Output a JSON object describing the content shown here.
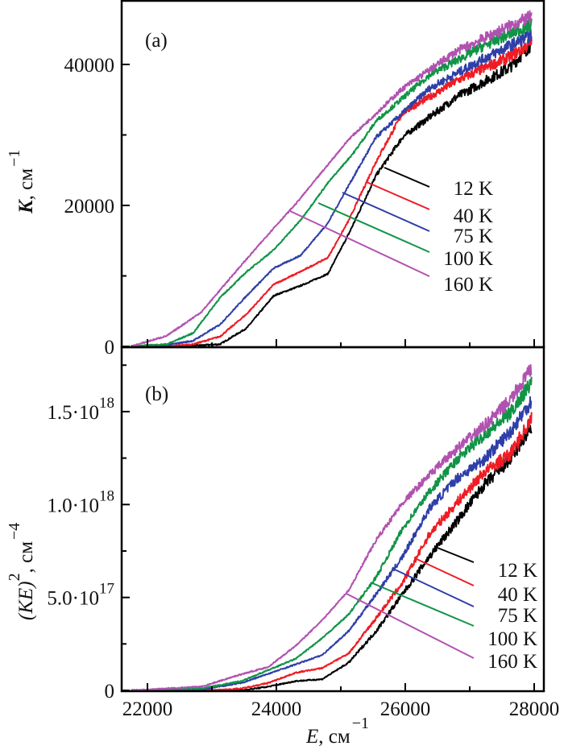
{
  "chart_data": [
    {
      "type": "line",
      "panel_label": "(a)",
      "ylabel": {
        "symbol": "K",
        "rest": ", cм",
        "exp": "−1"
      },
      "xlim": [
        21600,
        28125
      ],
      "ylim": [
        -100,
        49100
      ],
      "y_ticks": [
        0,
        20000,
        40000
      ],
      "y_tick_labels": [
        "0",
        "20000",
        "40000"
      ],
      "x_ticks": [
        22000,
        24000,
        26000,
        28000
      ],
      "grid": false,
      "legend_placement": "inline-right with leader lines",
      "series": [
        {
          "name": "12 K",
          "color": "#000000",
          "points": [
            [
              21750,
              0
            ],
            [
              22500,
              0
            ],
            [
              23125,
              300
            ],
            [
              23540,
              2600
            ],
            [
              23960,
              7200
            ],
            [
              24375,
              8600
            ],
            [
              24800,
              10300
            ],
            [
              25125,
              16000
            ],
            [
              25550,
              24300
            ],
            [
              25960,
              29700
            ],
            [
              26800,
              35400
            ],
            [
              27625,
              39600
            ],
            [
              27960,
              42900
            ]
          ]
        },
        {
          "name": "40 K",
          "color": "#ee1c24",
          "points": [
            [
              21750,
              0
            ],
            [
              22300,
              0
            ],
            [
              22710,
              300
            ],
            [
              23125,
              1400
            ],
            [
              23540,
              4600
            ],
            [
              23960,
              8800
            ],
            [
              24375,
              10600
            ],
            [
              24800,
              12600
            ],
            [
              25125,
              17900
            ],
            [
              25550,
              26300
            ],
            [
              25960,
              33100
            ],
            [
              26800,
              37700
            ],
            [
              27625,
              41100
            ],
            [
              27960,
              43100
            ]
          ]
        },
        {
          "name": "75 K",
          "color": "#2e3fa8",
          "points": [
            [
              21750,
              0
            ],
            [
              22300,
              200
            ],
            [
              22710,
              800
            ],
            [
              23125,
              3100
            ],
            [
              23540,
              7200
            ],
            [
              23960,
              11100
            ],
            [
              24375,
              12900
            ],
            [
              24800,
              17500
            ],
            [
              25125,
              22900
            ],
            [
              25550,
              29700
            ],
            [
              26375,
              36600
            ],
            [
              27210,
              40800
            ],
            [
              27960,
              44200
            ]
          ]
        },
        {
          "name": "100 K",
          "color": "#119447",
          "points": [
            [
              21750,
              0
            ],
            [
              22300,
              300
            ],
            [
              22710,
              1900
            ],
            [
              23125,
              6900
            ],
            [
              23540,
              10600
            ],
            [
              23960,
              13700
            ],
            [
              24375,
              17900
            ],
            [
              24800,
              23200
            ],
            [
              25210,
              27600
            ],
            [
              25550,
              32000
            ],
            [
              26375,
              38500
            ],
            [
              27210,
              42600
            ],
            [
              27960,
              45700
            ]
          ]
        },
        {
          "name": "160 K",
          "color": "#b152b0",
          "points": [
            [
              21750,
              0
            ],
            [
              22300,
              1500
            ],
            [
              22840,
              4900
            ],
            [
              23340,
              10300
            ],
            [
              23960,
              16800
            ],
            [
              24300,
              20200
            ],
            [
              25125,
              29400
            ],
            [
              25960,
              36600
            ],
            [
              26800,
              41900
            ],
            [
              27625,
              45500
            ],
            [
              27960,
              46800
            ]
          ]
        }
      ]
    },
    {
      "type": "line",
      "panel_label": "(b)",
      "ylabel": {
        "symbol": "(KE)",
        "sup": "2",
        "rest": ", cм",
        "exp": "−4"
      },
      "xlabel": {
        "symbol": "E",
        "rest": ", cм",
        "exp": "−1"
      },
      "xlim": [
        21600,
        28125
      ],
      "ylim": [
        0,
        1.847e+18
      ],
      "y_ticks": [
        0,
        5e+17,
        1e+18,
        1.5e+18
      ],
      "y_tick_labels": [
        {
          "mantissa": "0",
          "exp": ""
        },
        {
          "mantissa": "5.0·10",
          "exp": "17"
        },
        {
          "mantissa": "1.0·10",
          "exp": "18"
        },
        {
          "mantissa": "1.5·10",
          "exp": "18"
        }
      ],
      "x_ticks": [
        22000,
        24000,
        26000,
        28000
      ],
      "x_tick_labels": [
        "22000",
        "24000",
        "26000",
        "28000"
      ],
      "grid": false,
      "legend_placement": "inline-right with leader lines",
      "series": [
        {
          "name": "12 K",
          "color": "#000000",
          "points": [
            [
              21750,
              0
            ],
            [
              23460,
              0
            ],
            [
              23875,
              2e+16
            ],
            [
              24300,
              5e+16
            ],
            [
              24710,
              6e+16
            ],
            [
              25125,
              1.5e+17
            ],
            [
              25550,
              3.2e+17
            ],
            [
              25960,
              5.2e+17
            ],
            [
              26375,
              7.2e+17
            ],
            [
              26800,
              9.1e+17
            ],
            [
              27210,
              1.1e+18
            ],
            [
              27625,
              1.24e+18
            ],
            [
              27960,
              1.42e+18
            ]
          ]
        },
        {
          "name": "40 K",
          "color": "#ee1c24",
          "points": [
            [
              21750,
              0
            ],
            [
              23000,
              0
            ],
            [
              23460,
              1e+16
            ],
            [
              23875,
              4e+16
            ],
            [
              24300,
              9.5e+16
            ],
            [
              24710,
              1.2e+17
            ],
            [
              25125,
              2e+17
            ],
            [
              25550,
              3.9e+17
            ],
            [
              25960,
              5.8e+17
            ],
            [
              26375,
              8.4e+17
            ],
            [
              26800,
              1.01e+18
            ],
            [
              27210,
              1.17e+18
            ],
            [
              27625,
              1.27e+18
            ],
            [
              27960,
              1.46e+18
            ]
          ]
        },
        {
          "name": "75 K",
          "color": "#2e3fa8",
          "points": [
            [
              21750,
              0
            ],
            [
              22840,
              5000000000000000.0
            ],
            [
              23460,
              4e+16
            ],
            [
              24300,
              1.4e+17
            ],
            [
              24710,
              1.9e+17
            ],
            [
              25125,
              3.2e+17
            ],
            [
              25550,
              5.2e+17
            ],
            [
              25960,
              7.2e+17
            ],
            [
              26375,
              9.8e+17
            ],
            [
              26800,
              1.14e+18
            ],
            [
              27210,
              1.24e+18
            ],
            [
              27625,
              1.39e+18
            ],
            [
              27960,
              1.56e+18
            ]
          ]
        },
        {
          "name": "100 K",
          "color": "#119447",
          "points": [
            [
              21750,
              0
            ],
            [
              22840,
              1e+16
            ],
            [
              23460,
              5e+16
            ],
            [
              24300,
              1.7e+17
            ],
            [
              24710,
              2.8e+17
            ],
            [
              25125,
              4.1e+17
            ],
            [
              25550,
              6.1e+17
            ],
            [
              25960,
              8.7e+17
            ],
            [
              26375,
              1.07e+18
            ],
            [
              26800,
              1.24e+18
            ],
            [
              27210,
              1.37e+18
            ],
            [
              27625,
              1.49e+18
            ],
            [
              27960,
              1.66e+18
            ]
          ]
        },
        {
          "name": "160 K",
          "color": "#b152b0",
          "points": [
            [
              21750,
              0
            ],
            [
              22840,
              2e+16
            ],
            [
              23460,
              8.7e+16
            ],
            [
              23875,
              1.26e+17
            ],
            [
              24300,
              2.4e+17
            ],
            [
              24710,
              3.77e+17
            ],
            [
              25125,
              5.4e+17
            ],
            [
              25550,
              8.1e+17
            ],
            [
              25960,
              1.01e+18
            ],
            [
              26375,
              1.16e+18
            ],
            [
              26800,
              1.3e+18
            ],
            [
              27210,
              1.42e+18
            ],
            [
              27625,
              1.56e+18
            ],
            [
              27960,
              1.73e+18
            ]
          ]
        }
      ]
    }
  ]
}
